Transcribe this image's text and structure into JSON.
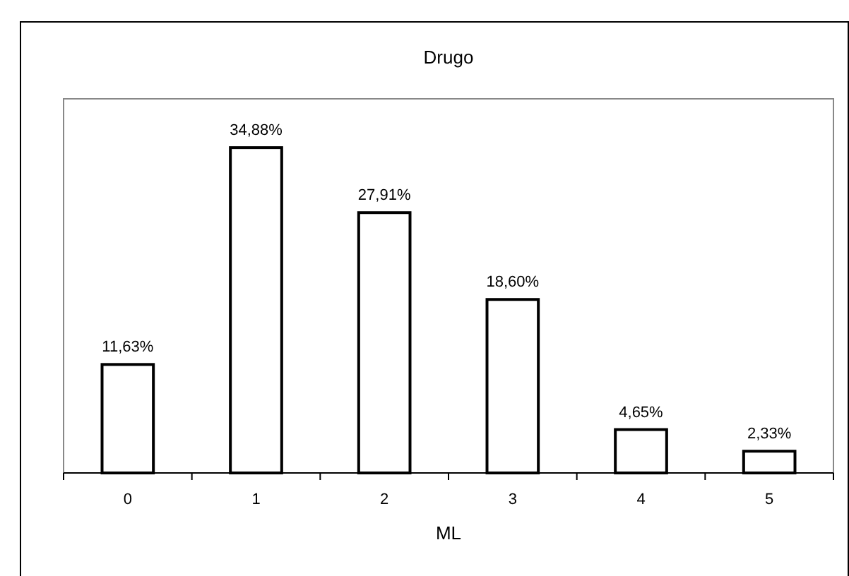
{
  "chart_data": {
    "type": "bar",
    "title": "Drugo",
    "xlabel": "ML",
    "categories": [
      "0",
      "1",
      "2",
      "3",
      "4",
      "5"
    ],
    "values": [
      11.63,
      34.88,
      27.91,
      18.6,
      4.65,
      2.33
    ],
    "value_labels": [
      "11,63%",
      "34,88%",
      "27,91%",
      "18,60%",
      "4,65%",
      "2,33%"
    ],
    "color": "#ffffff"
  }
}
